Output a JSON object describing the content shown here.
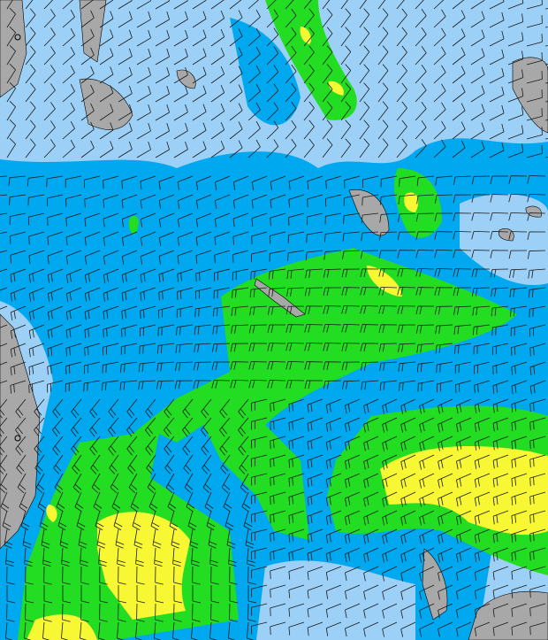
{
  "map": {
    "type": "wind-barb forecast map",
    "colors": {
      "ocean_base": "#00a8f0",
      "light_wind": "#9dd0f7",
      "moderate_wind": "#22dd22",
      "strong_wind": "#f7f733",
      "land": "#a8a8a8",
      "barb": "#1a1a1a",
      "coastline": "#000000"
    },
    "icons": [
      "wind-barb-icon",
      "city-marker-icon"
    ]
  }
}
